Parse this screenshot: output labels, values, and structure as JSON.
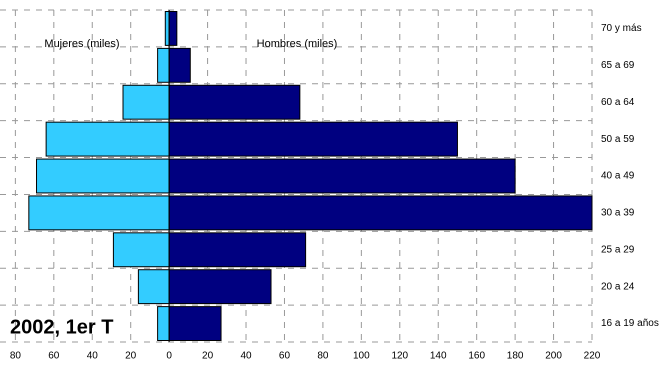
{
  "chart_data": {
    "type": "pyramid",
    "title": "2002, 1er T",
    "categories": [
      "70 y más",
      "65 a 69",
      "60 a 64",
      "50 a 59",
      "40 a 49",
      "30 a 39",
      "25 a 29",
      "20 a 24",
      "16 a 19 años"
    ],
    "series": [
      {
        "name": "Mujeres (miles)",
        "color": "#33ccff",
        "values": [
          -2,
          -6,
          -24,
          -64,
          -69,
          -73,
          -29,
          -16,
          -6
        ]
      },
      {
        "name": "Hombres (miles)",
        "color": "#000080",
        "values": [
          4,
          11,
          68,
          150,
          180,
          220,
          71,
          53,
          27
        ]
      }
    ],
    "xlim": [
      -88,
      220
    ],
    "xticks": [
      {
        "value": -80,
        "label": "80"
      },
      {
        "value": -60,
        "label": "60"
      },
      {
        "value": -40,
        "label": "40"
      },
      {
        "value": -20,
        "label": "20"
      },
      0,
      20,
      40,
      60,
      80,
      100,
      120,
      140,
      160,
      180,
      200,
      220
    ],
    "grid": true
  }
}
